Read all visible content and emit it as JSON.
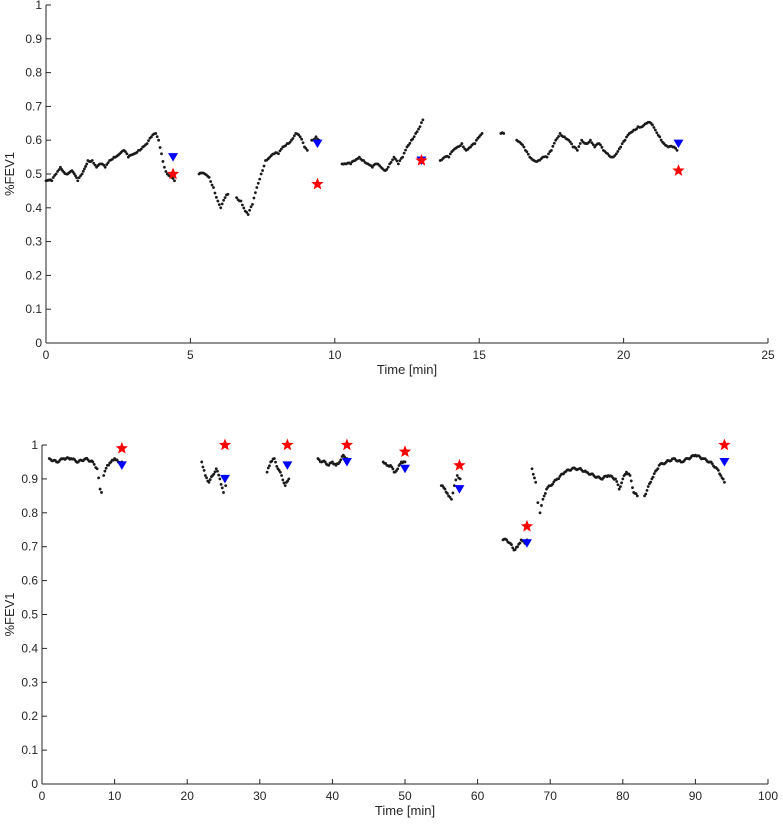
{
  "chart_data": [
    {
      "type": "scatter",
      "xlabel": "Time [min]",
      "ylabel": "%FEV1",
      "xlim": [
        0,
        25
      ],
      "ylim": [
        0,
        1
      ],
      "xticks": [
        0,
        5,
        10,
        15,
        20,
        25
      ],
      "yticks": [
        0,
        0.1,
        0.2,
        0.3,
        0.4,
        0.5,
        0.6,
        0.7,
        0.8,
        0.9,
        1
      ],
      "colors": {
        "data": "#1a1a1a",
        "star": "#ff0000",
        "triangle": "#0000ff"
      },
      "segments": [
        [
          [
            0.0,
            0.48
          ],
          [
            0.2,
            0.48
          ],
          [
            0.35,
            0.5
          ],
          [
            0.5,
            0.52
          ],
          [
            0.7,
            0.5
          ],
          [
            0.9,
            0.51
          ],
          [
            1.1,
            0.48
          ],
          [
            1.25,
            0.5
          ],
          [
            1.45,
            0.54
          ],
          [
            1.6,
            0.54
          ],
          [
            1.75,
            0.52
          ],
          [
            1.9,
            0.53
          ],
          [
            2.05,
            0.52
          ],
          [
            2.2,
            0.54
          ],
          [
            2.35,
            0.55
          ],
          [
            2.55,
            0.56
          ],
          [
            2.7,
            0.57
          ],
          [
            2.85,
            0.55
          ],
          [
            3.05,
            0.56
          ],
          [
            3.2,
            0.57
          ],
          [
            3.35,
            0.58
          ],
          [
            3.5,
            0.59
          ],
          [
            3.65,
            0.61
          ],
          [
            3.8,
            0.62
          ],
          [
            3.9,
            0.6
          ],
          [
            4.0,
            0.56
          ],
          [
            4.1,
            0.52
          ],
          [
            4.2,
            0.5
          ],
          [
            4.35,
            0.49
          ],
          [
            4.45,
            0.48
          ]
        ],
        [
          [
            5.3,
            0.5
          ],
          [
            5.5,
            0.5
          ],
          [
            5.65,
            0.49
          ],
          [
            5.8,
            0.46
          ],
          [
            5.95,
            0.42
          ],
          [
            6.05,
            0.4
          ],
          [
            6.2,
            0.43
          ],
          [
            6.3,
            0.44
          ]
        ],
        [
          [
            6.6,
            0.43
          ],
          [
            6.75,
            0.42
          ],
          [
            6.9,
            0.39
          ],
          [
            7.0,
            0.38
          ],
          [
            7.15,
            0.41
          ],
          [
            7.3,
            0.46
          ],
          [
            7.45,
            0.5
          ],
          [
            7.6,
            0.54
          ],
          [
            7.75,
            0.55
          ],
          [
            7.9,
            0.56
          ],
          [
            8.05,
            0.56
          ],
          [
            8.2,
            0.58
          ],
          [
            8.35,
            0.59
          ],
          [
            8.5,
            0.6
          ],
          [
            8.65,
            0.62
          ],
          [
            8.8,
            0.61
          ],
          [
            8.95,
            0.58
          ],
          [
            9.05,
            0.57
          ]
        ],
        [
          [
            9.2,
            0.6
          ],
          [
            9.35,
            0.61
          ],
          [
            9.45,
            0.6
          ]
        ],
        [
          [
            10.25,
            0.53
          ],
          [
            10.4,
            0.53
          ],
          [
            10.55,
            0.53
          ],
          [
            10.7,
            0.54
          ],
          [
            10.85,
            0.55
          ],
          [
            11.0,
            0.54
          ],
          [
            11.15,
            0.53
          ],
          [
            11.3,
            0.52
          ],
          [
            11.45,
            0.53
          ],
          [
            11.6,
            0.52
          ],
          [
            11.75,
            0.51
          ],
          [
            11.9,
            0.53
          ],
          [
            12.05,
            0.55
          ],
          [
            12.2,
            0.53
          ],
          [
            12.35,
            0.55
          ],
          [
            12.5,
            0.58
          ],
          [
            12.65,
            0.6
          ],
          [
            12.8,
            0.62
          ],
          [
            12.95,
            0.64
          ],
          [
            13.05,
            0.66
          ]
        ],
        [
          [
            13.65,
            0.54
          ],
          [
            13.8,
            0.55
          ],
          [
            13.95,
            0.55
          ],
          [
            14.1,
            0.57
          ],
          [
            14.25,
            0.58
          ],
          [
            14.4,
            0.59
          ],
          [
            14.55,
            0.57
          ],
          [
            14.7,
            0.58
          ],
          [
            14.85,
            0.59
          ],
          [
            15.0,
            0.61
          ],
          [
            15.1,
            0.62
          ]
        ],
        [
          [
            15.75,
            0.62
          ],
          [
            15.85,
            0.62
          ]
        ],
        [
          [
            16.3,
            0.6
          ],
          [
            16.45,
            0.59
          ],
          [
            16.6,
            0.57
          ],
          [
            16.75,
            0.55
          ],
          [
            16.9,
            0.54
          ],
          [
            17.05,
            0.54
          ],
          [
            17.2,
            0.55
          ],
          [
            17.35,
            0.55
          ],
          [
            17.5,
            0.57
          ],
          [
            17.65,
            0.6
          ],
          [
            17.8,
            0.62
          ],
          [
            17.95,
            0.61
          ],
          [
            18.1,
            0.6
          ],
          [
            18.25,
            0.58
          ],
          [
            18.4,
            0.57
          ],
          [
            18.55,
            0.6
          ],
          [
            18.7,
            0.59
          ],
          [
            18.85,
            0.6
          ],
          [
            19.0,
            0.58
          ],
          [
            19.15,
            0.59
          ],
          [
            19.3,
            0.57
          ],
          [
            19.45,
            0.56
          ],
          [
            19.6,
            0.55
          ],
          [
            19.75,
            0.56
          ],
          [
            19.9,
            0.58
          ],
          [
            20.05,
            0.6
          ],
          [
            20.2,
            0.62
          ],
          [
            20.35,
            0.63
          ],
          [
            20.5,
            0.64
          ],
          [
            20.65,
            0.64
          ],
          [
            20.8,
            0.65
          ],
          [
            20.95,
            0.65
          ],
          [
            21.1,
            0.63
          ],
          [
            21.25,
            0.61
          ],
          [
            21.4,
            0.59
          ],
          [
            21.55,
            0.58
          ],
          [
            21.7,
            0.58
          ],
          [
            21.85,
            0.57
          ]
        ]
      ],
      "stars": [
        [
          4.4,
          0.5
        ],
        [
          9.4,
          0.47
        ],
        [
          13.0,
          0.54
        ],
        [
          21.9,
          0.51
        ]
      ],
      "triangles": [
        [
          4.4,
          0.55
        ],
        [
          9.4,
          0.59
        ],
        [
          13.0,
          0.54
        ],
        [
          21.9,
          0.59
        ]
      ]
    },
    {
      "type": "scatter",
      "xlabel": "Time [min]",
      "ylabel": "%FEV1",
      "xlim": [
        0,
        100
      ],
      "ylim": [
        0,
        1
      ],
      "xticks": [
        0,
        10,
        20,
        30,
        40,
        50,
        60,
        70,
        80,
        90,
        100
      ],
      "yticks": [
        0,
        0.1,
        0.2,
        0.3,
        0.4,
        0.5,
        0.6,
        0.7,
        0.8,
        0.9,
        1
      ],
      "colors": {
        "data": "#1a1a1a",
        "star": "#ff0000",
        "triangle": "#0000ff"
      },
      "segments": [
        [
          [
            1.0,
            0.96
          ],
          [
            2.0,
            0.95
          ],
          [
            3.0,
            0.96
          ],
          [
            4.0,
            0.96
          ],
          [
            5.0,
            0.95
          ],
          [
            6.0,
            0.96
          ],
          [
            7.0,
            0.95
          ],
          [
            7.6,
            0.93
          ],
          [
            8.0,
            0.87
          ],
          [
            8.2,
            0.86
          ],
          [
            8.5,
            0.91
          ],
          [
            9.0,
            0.94
          ],
          [
            9.5,
            0.95
          ],
          [
            10.0,
            0.96
          ],
          [
            10.5,
            0.95
          ],
          [
            11.0,
            0.95
          ]
        ],
        [
          [
            22.0,
            0.95
          ],
          [
            22.5,
            0.91
          ],
          [
            23.0,
            0.89
          ],
          [
            23.5,
            0.91
          ],
          [
            24.0,
            0.93
          ],
          [
            24.5,
            0.9
          ],
          [
            25.0,
            0.86
          ],
          [
            25.3,
            0.88
          ]
        ],
        [
          [
            31.0,
            0.92
          ],
          [
            31.5,
            0.95
          ],
          [
            32.0,
            0.96
          ],
          [
            32.5,
            0.93
          ],
          [
            33.0,
            0.91
          ],
          [
            33.5,
            0.88
          ],
          [
            34.0,
            0.9
          ]
        ],
        [
          [
            38.0,
            0.96
          ],
          [
            38.5,
            0.95
          ],
          [
            39.0,
            0.95
          ],
          [
            39.5,
            0.94
          ],
          [
            40.0,
            0.95
          ],
          [
            40.5,
            0.94
          ],
          [
            41.0,
            0.95
          ],
          [
            41.5,
            0.97
          ],
          [
            42.0,
            0.96
          ]
        ],
        [
          [
            47.0,
            0.95
          ],
          [
            47.5,
            0.94
          ],
          [
            48.0,
            0.94
          ],
          [
            48.5,
            0.92
          ],
          [
            49.0,
            0.93
          ],
          [
            49.5,
            0.95
          ],
          [
            50.0,
            0.95
          ]
        ],
        [
          [
            55.0,
            0.88
          ],
          [
            55.5,
            0.87
          ],
          [
            56.0,
            0.85
          ],
          [
            56.4,
            0.84
          ],
          [
            56.8,
            0.88
          ],
          [
            57.2,
            0.91
          ],
          [
            57.6,
            0.9
          ]
        ],
        [
          [
            63.5,
            0.72
          ],
          [
            64.0,
            0.72
          ],
          [
            64.5,
            0.71
          ],
          [
            65.0,
            0.69
          ],
          [
            65.5,
            0.7
          ],
          [
            66.0,
            0.72
          ],
          [
            66.5,
            0.71
          ],
          [
            66.8,
            0.72
          ]
        ],
        [
          [
            67.5,
            0.93
          ],
          [
            68.0,
            0.89
          ],
          [
            68.3,
            0.83
          ],
          [
            68.6,
            0.8
          ],
          [
            69.0,
            0.84
          ],
          [
            69.5,
            0.87
          ],
          [
            70.0,
            0.88
          ],
          [
            71.0,
            0.9
          ],
          [
            72.0,
            0.92
          ],
          [
            73.0,
            0.93
          ],
          [
            74.0,
            0.93
          ],
          [
            75.0,
            0.92
          ],
          [
            76.0,
            0.91
          ],
          [
            77.0,
            0.9
          ],
          [
            78.0,
            0.91
          ],
          [
            79.0,
            0.9
          ],
          [
            79.5,
            0.87
          ],
          [
            80.0,
            0.9
          ],
          [
            80.5,
            0.92
          ],
          [
            81.0,
            0.91
          ],
          [
            81.5,
            0.86
          ],
          [
            82.0,
            0.85
          ]
        ],
        [
          [
            83.0,
            0.85
          ],
          [
            84.0,
            0.9
          ],
          [
            85.0,
            0.94
          ],
          [
            86.0,
            0.95
          ],
          [
            87.0,
            0.96
          ],
          [
            88.0,
            0.95
          ],
          [
            89.0,
            0.96
          ],
          [
            90.0,
            0.97
          ],
          [
            91.0,
            0.96
          ],
          [
            92.0,
            0.95
          ],
          [
            93.0,
            0.93
          ],
          [
            93.5,
            0.91
          ],
          [
            94.0,
            0.89
          ]
        ]
      ],
      "stars": [
        [
          11.0,
          0.99
        ],
        [
          25.2,
          1.0
        ],
        [
          33.8,
          1.0
        ],
        [
          42.0,
          1.0
        ],
        [
          50.0,
          0.98
        ],
        [
          57.5,
          0.94
        ],
        [
          66.8,
          0.76
        ],
        [
          94.0,
          1.0
        ]
      ],
      "triangles": [
        [
          11.0,
          0.94
        ],
        [
          25.2,
          0.9
        ],
        [
          33.8,
          0.94
        ],
        [
          42.0,
          0.95
        ],
        [
          50.0,
          0.93
        ],
        [
          57.5,
          0.87
        ],
        [
          66.8,
          0.71
        ],
        [
          94.0,
          0.95
        ]
      ]
    }
  ]
}
